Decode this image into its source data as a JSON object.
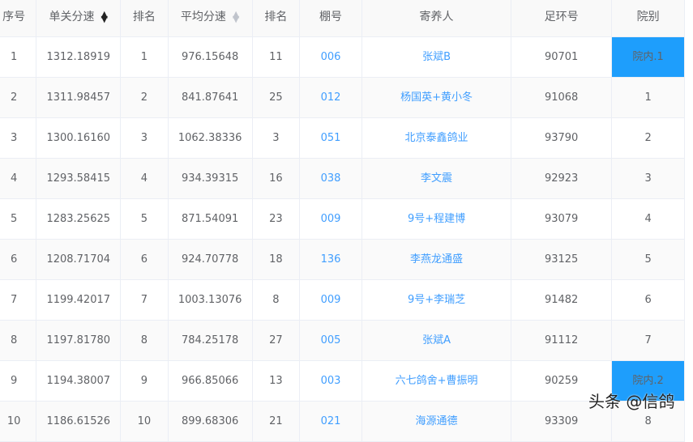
{
  "headers": [
    "序号",
    "单关分速",
    "排名",
    "平均分速",
    "排名",
    "棚号",
    "寄养人",
    "足环号",
    "院别"
  ],
  "sort_icons": {
    "col1": "sort-desc-active-icon",
    "col3": "sort-inactive-icon"
  },
  "highlight_color": "#1e9efc",
  "rows": [
    [
      "1",
      "1312.18919",
      "1",
      "976.15648",
      "11",
      "006",
      "张斌B",
      "90701",
      "院内.1"
    ],
    [
      "2",
      "1311.98457",
      "2",
      "841.87641",
      "25",
      "012",
      "杨国英+黄小冬",
      "91068",
      "1"
    ],
    [
      "3",
      "1300.16160",
      "3",
      "1062.38336",
      "3",
      "051",
      "北京泰鑫鸽业",
      "93790",
      "2"
    ],
    [
      "4",
      "1293.58415",
      "4",
      "934.39315",
      "16",
      "038",
      "李文震",
      "92923",
      "3"
    ],
    [
      "5",
      "1283.25625",
      "5",
      "871.54091",
      "23",
      "009",
      "9号+程建博",
      "93079",
      "4"
    ],
    [
      "6",
      "1208.71704",
      "6",
      "924.70778",
      "18",
      "136",
      "李燕龙通盛",
      "93125",
      "5"
    ],
    [
      "7",
      "1199.42017",
      "7",
      "1003.13076",
      "8",
      "009",
      "9号+李瑞芝",
      "91482",
      "6"
    ],
    [
      "8",
      "1197.81780",
      "8",
      "784.25178",
      "27",
      "005",
      "张斌A",
      "91112",
      "7"
    ],
    [
      "9",
      "1194.38007",
      "9",
      "966.85066",
      "13",
      "003",
      "六七鸽舍+曹振明",
      "90259",
      "院内.2"
    ],
    [
      "10",
      "1186.61526",
      "10",
      "899.68306",
      "21",
      "021",
      "海源通德",
      "93309",
      "8"
    ]
  ],
  "watermark": "头条 @信鸽"
}
